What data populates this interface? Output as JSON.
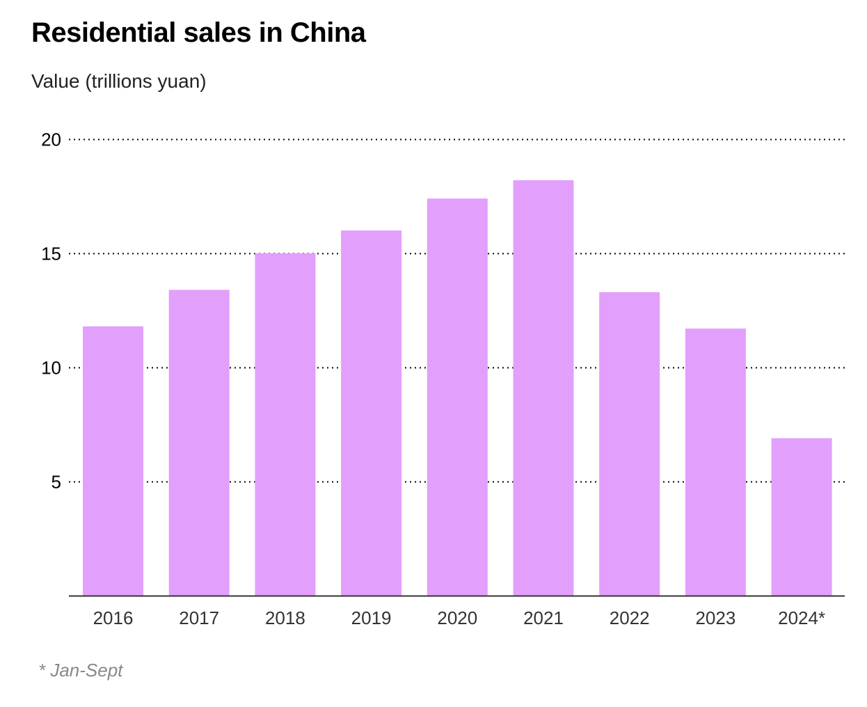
{
  "title": "Residential sales in China",
  "subtitle": "Value (trillions yuan)",
  "footnote": "* Jan-Sept",
  "colors": {
    "bar": "#e39ffc",
    "grid": "#000000",
    "axis": "#333333"
  },
  "chart_data": {
    "type": "bar",
    "title": "Residential sales in China",
    "ylabel": "Value (trillions yuan)",
    "xlabel": "",
    "categories": [
      "2016",
      "2017",
      "2018",
      "2019",
      "2020",
      "2021",
      "2022",
      "2023",
      "2024*"
    ],
    "values": [
      11.8,
      13.4,
      15.0,
      16.0,
      17.4,
      18.2,
      13.3,
      11.7,
      6.9
    ],
    "ylim": [
      0,
      20
    ],
    "yticks": [
      "5",
      "10",
      "15",
      "20"
    ],
    "grid": true,
    "grid_style": "dotted",
    "legend": "none"
  }
}
